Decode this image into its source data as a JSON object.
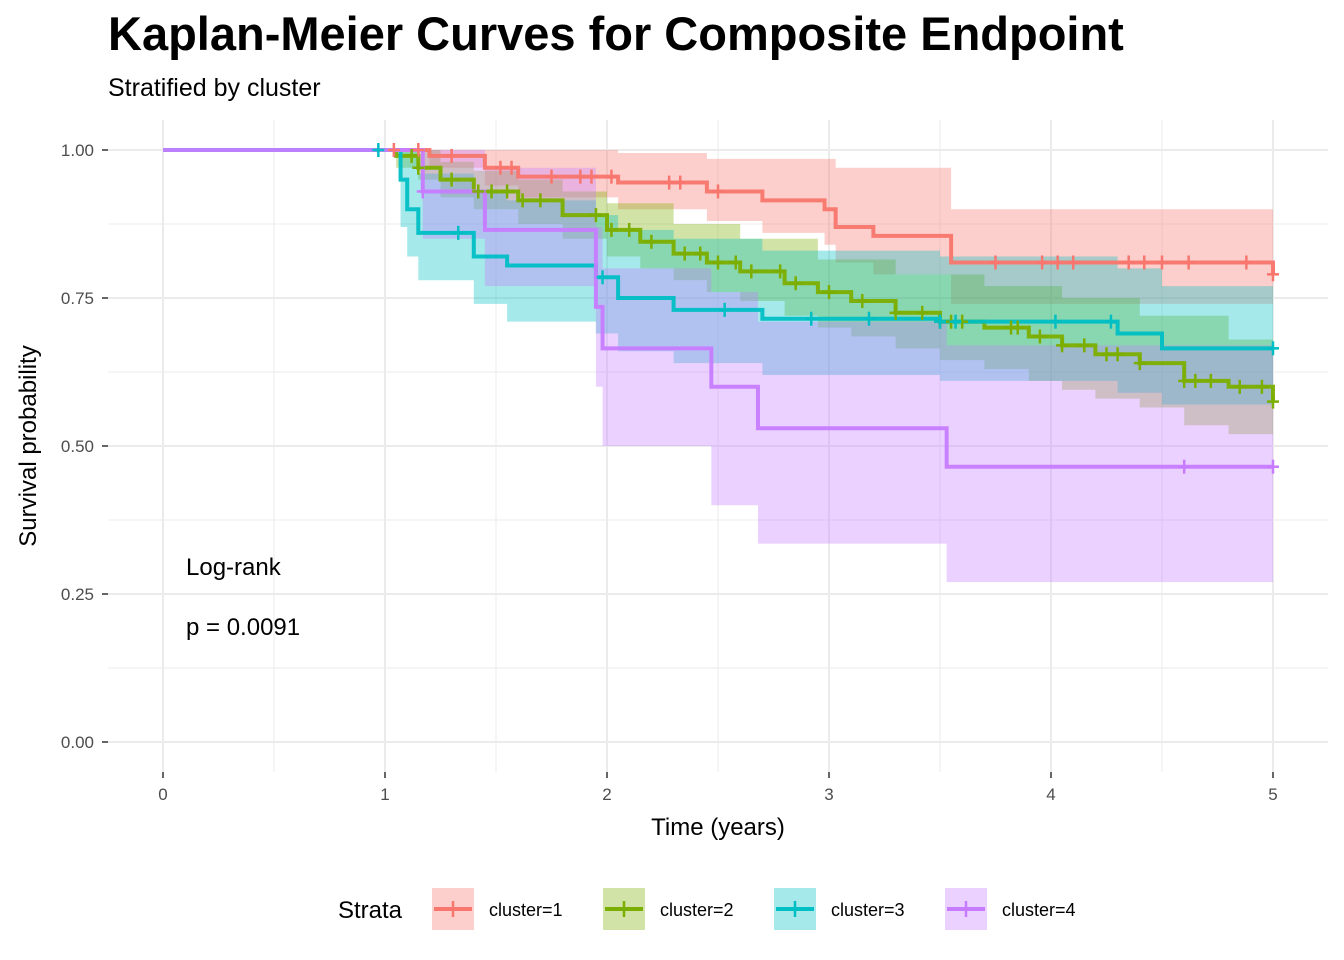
{
  "chart_data": {
    "type": "line",
    "title": "Kaplan-Meier Curves for Composite Endpoint",
    "subtitle": "Stratified by cluster",
    "xlabel": "Time (years)",
    "ylabel": "Survival probability",
    "xlim": [
      0,
      5
    ],
    "ylim": [
      0,
      1
    ],
    "x_ticks": [
      "0",
      "1",
      "2",
      "3",
      "4",
      "5"
    ],
    "y_ticks": [
      "0.00",
      "0.25",
      "0.50",
      "0.75",
      "1.00"
    ],
    "grid": true,
    "annotation_lines": [
      "Log-rank",
      "p = 0.0091"
    ],
    "legend": {
      "title": "Strata",
      "placement": "bottom"
    },
    "series": [
      {
        "name": "cluster=1",
        "color": "#F8766D",
        "steps": [
          [
            0,
            1.0
          ],
          [
            1.2,
            0.99
          ],
          [
            1.45,
            0.97
          ],
          [
            1.6,
            0.955
          ],
          [
            2.05,
            0.945
          ],
          [
            2.45,
            0.93
          ],
          [
            2.7,
            0.915
          ],
          [
            2.98,
            0.9
          ],
          [
            3.03,
            0.87
          ],
          [
            3.2,
            0.855
          ],
          [
            3.55,
            0.81
          ],
          [
            5.0,
            0.79
          ]
        ],
        "lower": [
          [
            0,
            1.0
          ],
          [
            1.2,
            0.97
          ],
          [
            1.45,
            0.94
          ],
          [
            1.6,
            0.92
          ],
          [
            2.05,
            0.9
          ],
          [
            2.45,
            0.88
          ],
          [
            2.7,
            0.86
          ],
          [
            2.98,
            0.84
          ],
          [
            3.03,
            0.81
          ],
          [
            3.2,
            0.79
          ],
          [
            3.55,
            0.74
          ],
          [
            5.0,
            0.71
          ]
        ],
        "upper": [
          [
            0,
            1.0
          ],
          [
            1.2,
            1.0
          ],
          [
            1.45,
            1.0
          ],
          [
            1.6,
            1.0
          ],
          [
            2.05,
            0.995
          ],
          [
            2.45,
            0.985
          ],
          [
            3.03,
            0.97
          ],
          [
            3.55,
            0.9
          ],
          [
            5.0,
            0.895
          ]
        ],
        "censor": [
          1.04,
          1.15,
          1.3,
          1.52,
          1.57,
          1.75,
          1.88,
          1.93,
          2.02,
          2.28,
          2.33,
          2.5,
          3.75,
          3.96,
          4.03,
          4.1,
          4.35,
          4.42,
          4.5,
          4.62,
          4.88,
          5.0
        ]
      },
      {
        "name": "cluster=2",
        "color": "#7CAE00",
        "steps": [
          [
            0,
            1.0
          ],
          [
            1.05,
            0.99
          ],
          [
            1.15,
            0.97
          ],
          [
            1.25,
            0.95
          ],
          [
            1.4,
            0.93
          ],
          [
            1.6,
            0.915
          ],
          [
            1.8,
            0.89
          ],
          [
            2.0,
            0.865
          ],
          [
            2.15,
            0.845
          ],
          [
            2.3,
            0.825
          ],
          [
            2.45,
            0.81
          ],
          [
            2.6,
            0.795
          ],
          [
            2.8,
            0.775
          ],
          [
            2.95,
            0.76
          ],
          [
            3.1,
            0.745
          ],
          [
            3.3,
            0.725
          ],
          [
            3.5,
            0.71
          ],
          [
            3.7,
            0.7
          ],
          [
            3.9,
            0.685
          ],
          [
            4.05,
            0.67
          ],
          [
            4.2,
            0.655
          ],
          [
            4.4,
            0.64
          ],
          [
            4.6,
            0.61
          ],
          [
            4.8,
            0.6
          ],
          [
            5.0,
            0.575
          ]
        ],
        "lower": [
          [
            0,
            1.0
          ],
          [
            1.05,
            0.97
          ],
          [
            1.15,
            0.95
          ],
          [
            1.25,
            0.92
          ],
          [
            1.4,
            0.9
          ],
          [
            1.6,
            0.875
          ],
          [
            1.8,
            0.85
          ],
          [
            2.0,
            0.82
          ],
          [
            2.15,
            0.8
          ],
          [
            2.3,
            0.78
          ],
          [
            2.45,
            0.76
          ],
          [
            2.6,
            0.745
          ],
          [
            2.8,
            0.72
          ],
          [
            2.95,
            0.7
          ],
          [
            3.1,
            0.685
          ],
          [
            3.3,
            0.665
          ],
          [
            3.5,
            0.645
          ],
          [
            3.7,
            0.63
          ],
          [
            3.9,
            0.61
          ],
          [
            4.05,
            0.595
          ],
          [
            4.2,
            0.58
          ],
          [
            4.4,
            0.565
          ],
          [
            4.6,
            0.535
          ],
          [
            4.8,
            0.52
          ],
          [
            5.0,
            0.5
          ]
        ],
        "upper": [
          [
            0,
            1.0
          ],
          [
            1.05,
            1.0
          ],
          [
            1.25,
            0.98
          ],
          [
            1.4,
            0.965
          ],
          [
            1.6,
            0.95
          ],
          [
            1.8,
            0.93
          ],
          [
            2.0,
            0.91
          ],
          [
            2.3,
            0.875
          ],
          [
            2.6,
            0.85
          ],
          [
            2.95,
            0.815
          ],
          [
            3.3,
            0.79
          ],
          [
            3.7,
            0.77
          ],
          [
            4.05,
            0.75
          ],
          [
            4.4,
            0.72
          ],
          [
            4.8,
            0.68
          ],
          [
            5.0,
            0.66
          ]
        ],
        "censor": [
          1.12,
          1.15,
          1.3,
          1.42,
          1.48,
          1.55,
          1.62,
          1.7,
          1.95,
          2.02,
          2.1,
          2.2,
          2.35,
          2.42,
          2.5,
          2.58,
          2.65,
          2.78,
          2.85,
          3.0,
          3.15,
          3.3,
          3.42,
          3.5,
          3.55,
          3.6,
          3.82,
          3.85,
          3.95,
          4.05,
          4.15,
          4.25,
          4.3,
          4.4,
          4.6,
          4.65,
          4.72,
          4.85,
          4.95,
          5.0
        ]
      },
      {
        "name": "cluster=3",
        "color": "#00BFC4",
        "steps": [
          [
            0,
            1.0
          ],
          [
            1.07,
            0.95
          ],
          [
            1.1,
            0.9
          ],
          [
            1.15,
            0.86
          ],
          [
            1.4,
            0.82
          ],
          [
            1.55,
            0.805
          ],
          [
            1.95,
            0.785
          ],
          [
            2.05,
            0.75
          ],
          [
            2.3,
            0.73
          ],
          [
            2.7,
            0.715
          ],
          [
            3.5,
            0.71
          ],
          [
            4.3,
            0.69
          ],
          [
            4.5,
            0.665
          ],
          [
            5.0,
            0.665
          ]
        ],
        "lower": [
          [
            0,
            1.0
          ],
          [
            1.07,
            0.87
          ],
          [
            1.1,
            0.82
          ],
          [
            1.15,
            0.78
          ],
          [
            1.4,
            0.74
          ],
          [
            1.55,
            0.71
          ],
          [
            1.95,
            0.69
          ],
          [
            2.05,
            0.66
          ],
          [
            2.3,
            0.64
          ],
          [
            2.7,
            0.62
          ],
          [
            3.5,
            0.61
          ],
          [
            4.3,
            0.59
          ],
          [
            4.5,
            0.57
          ],
          [
            5.0,
            0.57
          ]
        ],
        "upper": [
          [
            0,
            1.0
          ],
          [
            1.07,
            1.0
          ],
          [
            1.15,
            0.96
          ],
          [
            1.4,
            0.93
          ],
          [
            1.55,
            0.915
          ],
          [
            1.95,
            0.89
          ],
          [
            2.05,
            0.865
          ],
          [
            2.3,
            0.85
          ],
          [
            2.7,
            0.83
          ],
          [
            3.5,
            0.82
          ],
          [
            4.3,
            0.8
          ],
          [
            4.5,
            0.77
          ],
          [
            5.0,
            0.77
          ]
        ],
        "censor": [
          0.97,
          1.33,
          1.98,
          2.53,
          2.92,
          3.18,
          3.5,
          3.57,
          4.02,
          4.27,
          5.0
        ]
      },
      {
        "name": "cluster=4",
        "color": "#C77CFF",
        "steps": [
          [
            0,
            1.0
          ],
          [
            1.17,
            0.93
          ],
          [
            1.45,
            0.865
          ],
          [
            1.95,
            0.735
          ],
          [
            1.98,
            0.665
          ],
          [
            2.47,
            0.6
          ],
          [
            2.68,
            0.53
          ],
          [
            3.53,
            0.465
          ],
          [
            5.0,
            0.465
          ]
        ],
        "lower": [
          [
            0,
            1.0
          ],
          [
            1.17,
            0.85
          ],
          [
            1.45,
            0.77
          ],
          [
            1.95,
            0.6
          ],
          [
            1.98,
            0.5
          ],
          [
            2.47,
            0.4
          ],
          [
            2.68,
            0.335
          ],
          [
            3.53,
            0.27
          ],
          [
            5.0,
            0.27
          ]
        ],
        "upper": [
          [
            0,
            1.0
          ],
          [
            1.45,
            0.97
          ],
          [
            1.95,
            0.87
          ],
          [
            1.98,
            0.8
          ],
          [
            2.47,
            0.76
          ],
          [
            2.68,
            0.71
          ],
          [
            3.53,
            0.67
          ],
          [
            5.0,
            0.67
          ]
        ],
        "censor": [
          1.17,
          4.6,
          5.0
        ]
      }
    ]
  }
}
